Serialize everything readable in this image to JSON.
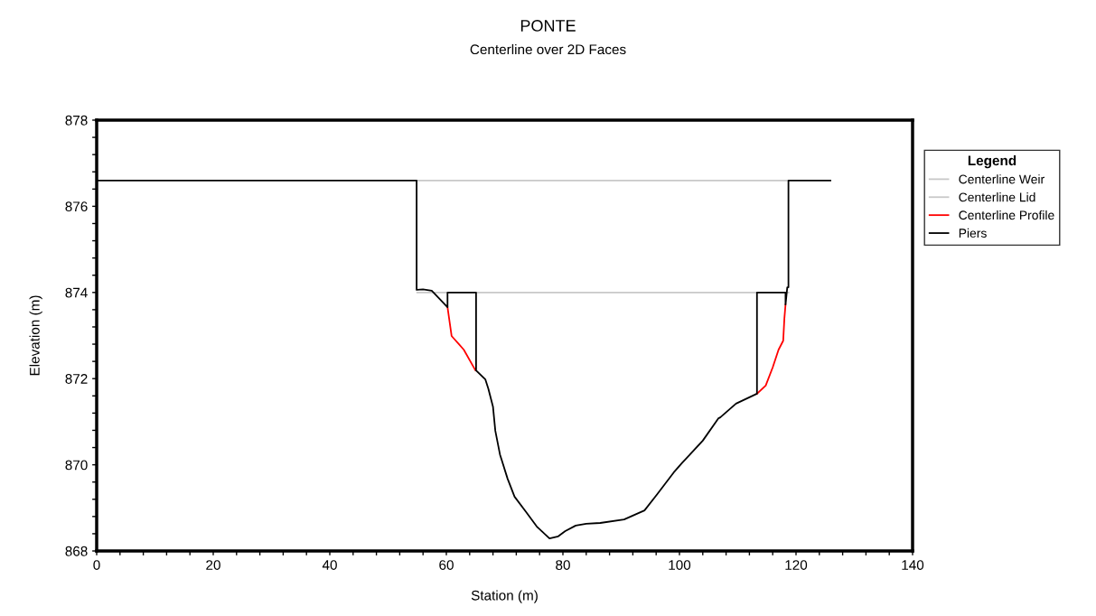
{
  "chart_data": {
    "type": "line",
    "title": "PONTE",
    "subtitle": "Centerline over 2D Faces",
    "xlabel": "Station (m)",
    "ylabel": "Elevation (m)",
    "legend_title": "Legend",
    "legend": "right",
    "grid": false,
    "marker": "none",
    "line_style": "solid",
    "xlim": [
      0,
      140
    ],
    "ylim": [
      868,
      878
    ],
    "xticks": [
      0,
      {
        "value": 4,
        "label": null
      },
      {
        "value": 8,
        "label": null
      },
      {
        "value": 12,
        "label": null
      },
      {
        "value": 16,
        "label": null
      },
      20,
      {
        "value": 24,
        "label": null
      },
      {
        "value": 28,
        "label": null
      },
      {
        "value": 32,
        "label": null
      },
      {
        "value": 36,
        "label": null
      },
      40,
      {
        "value": 44,
        "label": null
      },
      {
        "value": 48,
        "label": null
      },
      {
        "value": 52,
        "label": null
      },
      {
        "value": 56,
        "label": null
      },
      60,
      {
        "value": 64,
        "label": null
      },
      {
        "value": 68,
        "label": null
      },
      {
        "value": 72,
        "label": null
      },
      {
        "value": 76,
        "label": null
      },
      80,
      {
        "value": 84,
        "label": null
      },
      {
        "value": 88,
        "label": null
      },
      {
        "value": 92,
        "label": null
      },
      {
        "value": 96,
        "label": null
      },
      100,
      {
        "value": 104,
        "label": null
      },
      {
        "value": 108,
        "label": null
      },
      {
        "value": 112,
        "label": null
      },
      {
        "value": 116,
        "label": null
      },
      120,
      {
        "value": 124,
        "label": null
      },
      {
        "value": 128,
        "label": null
      },
      {
        "value": 132,
        "label": null
      },
      {
        "value": 136,
        "label": null
      },
      140
    ],
    "yticks": [
      868,
      {
        "value": 868.4,
        "label": null
      },
      {
        "value": 868.8,
        "label": null
      },
      {
        "value": 869.2,
        "label": null
      },
      {
        "value": 869.6,
        "label": null
      },
      870,
      {
        "value": 870.4,
        "label": null
      },
      {
        "value": 870.8,
        "label": null
      },
      {
        "value": 871.2,
        "label": null
      },
      {
        "value": 871.6,
        "label": null
      },
      872,
      {
        "value": 872.4,
        "label": null
      },
      {
        "value": 872.8,
        "label": null
      },
      {
        "value": 873.2,
        "label": null
      },
      {
        "value": 873.6,
        "label": null
      },
      874,
      {
        "value": 874.4,
        "label": null
      },
      {
        "value": 874.8,
        "label": null
      },
      {
        "value": 875.2,
        "label": null
      },
      {
        "value": 875.6,
        "label": null
      },
      876,
      {
        "value": 876.4,
        "label": null
      },
      {
        "value": 876.8,
        "label": null
      },
      {
        "value": 877.2,
        "label": null
      },
      {
        "value": 877.6,
        "label": null
      },
      878
    ],
    "series": [
      {
        "name": "Centerline Weir",
        "color": "#c8c8c8",
        "x": [
          55,
          118.7
        ],
        "values": [
          876.6,
          876.6
        ]
      },
      {
        "name": "Centerline Lid",
        "color": "#c8c8c8",
        "x": [
          55,
          118.7
        ],
        "values": [
          874,
          874
        ]
      },
      {
        "name": "Centerline Profile",
        "color": "#ff0000",
        "x": [
          60.2,
          60.9,
          63.0,
          65.0,
          89,
          113.3,
          114.8,
          116.0,
          117.0,
          117.8,
          118.0,
          118.2
        ],
        "values": [
          873.66,
          872.99,
          872.67,
          872.19,
          null,
          871.65,
          871.84,
          872.26,
          872.67,
          872.88,
          873.39,
          873.72
        ]
      },
      {
        "name": "Piers",
        "color": "#000000",
        "x": [
          0,
          54.9,
          54.9,
          56,
          57.5,
          58.5,
          60.2,
          60.2,
          65.1,
          65.1,
          66.7,
          67.2,
          68.0,
          68.4,
          69.2,
          70.5,
          71.7,
          73.7,
          75.5,
          77.7,
          79.2,
          80.4,
          82.2,
          84.0,
          86.4,
          90.5,
          94.0,
          96.2,
          99.0,
          100.5,
          104.0,
          106.7,
          107.0,
          109.7,
          113.3,
          113.3,
          118.2,
          118.2,
          118.5,
          118.7,
          118.7,
          125.9
        ],
        "values": [
          876.6,
          876.6,
          874.06,
          874.07,
          874.04,
          873.9,
          873.66,
          874,
          874,
          872.19,
          871.98,
          871.77,
          871.35,
          870.79,
          870.24,
          869.68,
          869.26,
          868.9,
          868.57,
          868.29,
          868.34,
          868.46,
          868.59,
          868.63,
          868.65,
          868.73,
          868.94,
          869.32,
          869.82,
          870.05,
          870.56,
          871.08,
          871.1,
          871.42,
          871.65,
          874,
          874,
          873.72,
          874.12,
          874.12,
          876.6,
          876.6
        ]
      }
    ]
  }
}
